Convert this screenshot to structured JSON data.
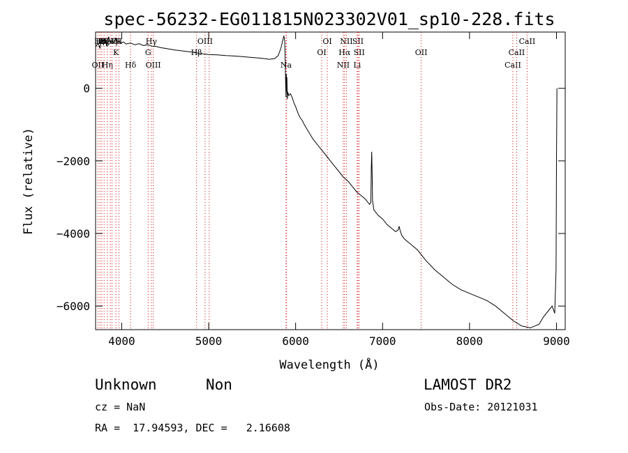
{
  "chart_data": {
    "type": "line",
    "title": "spec-56232-EG011815N023302V01_sp10-228.fits",
    "xlabel": "Wavelength (Å)",
    "ylabel": "Flux (relative)",
    "xlim": [
      3700,
      9100
    ],
    "ylim": [
      -6650,
      1550
    ],
    "x_ticks": [
      4000,
      5000,
      6000,
      7000,
      8000,
      9000
    ],
    "y_ticks": [
      0,
      -2000,
      -4000,
      -6000
    ],
    "grid": false,
    "series": [
      {
        "color": "#000000",
        "points": [
          [
            3705,
            1150
          ],
          [
            3730,
            1250
          ],
          [
            3750,
            1100
          ],
          [
            3770,
            1380
          ],
          [
            3790,
            1200
          ],
          [
            3810,
            1350
          ],
          [
            3830,
            1150
          ],
          [
            3850,
            1420
          ],
          [
            3870,
            1250
          ],
          [
            3890,
            1300
          ],
          [
            3910,
            1250
          ],
          [
            3930,
            1380
          ],
          [
            3950,
            1260
          ],
          [
            3970,
            1300
          ],
          [
            3990,
            1240
          ],
          [
            4020,
            1280
          ],
          [
            4050,
            1220
          ],
          [
            4100,
            1250
          ],
          [
            4150,
            1200
          ],
          [
            4200,
            1230
          ],
          [
            4250,
            1180
          ],
          [
            4300,
            1200
          ],
          [
            4350,
            1160
          ],
          [
            4400,
            1150
          ],
          [
            4450,
            1120
          ],
          [
            4500,
            1100
          ],
          [
            4600,
            1060
          ],
          [
            4700,
            1030
          ],
          [
            4800,
            1000
          ],
          [
            4900,
            960
          ],
          [
            5000,
            930
          ],
          [
            5100,
            920
          ],
          [
            5200,
            900
          ],
          [
            5300,
            890
          ],
          [
            5400,
            870
          ],
          [
            5500,
            850
          ],
          [
            5600,
            830
          ],
          [
            5700,
            800
          ],
          [
            5760,
            820
          ],
          [
            5800,
            900
          ],
          [
            5830,
            1100
          ],
          [
            5850,
            1300
          ],
          [
            5865,
            1450
          ],
          [
            5875,
            1300
          ],
          [
            5880,
            800
          ],
          [
            5885,
            200
          ],
          [
            5890,
            -250
          ],
          [
            5893,
            400
          ],
          [
            5897,
            -100
          ],
          [
            5900,
            300
          ],
          [
            5905,
            -300
          ],
          [
            5910,
            -100
          ],
          [
            5920,
            -200
          ],
          [
            5940,
            -150
          ],
          [
            5960,
            -250
          ],
          [
            5980,
            -400
          ],
          [
            6000,
            -500
          ],
          [
            6030,
            -700
          ],
          [
            6050,
            -800
          ],
          [
            6080,
            -900
          ],
          [
            6100,
            -1000
          ],
          [
            6150,
            -1200
          ],
          [
            6200,
            -1400
          ],
          [
            6250,
            -1550
          ],
          [
            6300,
            -1700
          ],
          [
            6350,
            -1850
          ],
          [
            6400,
            -2000
          ],
          [
            6450,
            -2150
          ],
          [
            6500,
            -2300
          ],
          [
            6550,
            -2450
          ],
          [
            6600,
            -2550
          ],
          [
            6650,
            -2700
          ],
          [
            6700,
            -2850
          ],
          [
            6750,
            -2950
          ],
          [
            6800,
            -3050
          ],
          [
            6850,
            -3200
          ],
          [
            6865,
            -3150
          ],
          [
            6870,
            -2200
          ],
          [
            6875,
            -1750
          ],
          [
            6880,
            -2300
          ],
          [
            6885,
            -3100
          ],
          [
            6900,
            -3350
          ],
          [
            6950,
            -3500
          ],
          [
            7000,
            -3600
          ],
          [
            7050,
            -3750
          ],
          [
            7100,
            -3850
          ],
          [
            7150,
            -3950
          ],
          [
            7180,
            -3900
          ],
          [
            7190,
            -3800
          ],
          [
            7200,
            -3900
          ],
          [
            7220,
            -4050
          ],
          [
            7250,
            -4150
          ],
          [
            7300,
            -4250
          ],
          [
            7400,
            -4450
          ],
          [
            7500,
            -4750
          ],
          [
            7600,
            -5000
          ],
          [
            7700,
            -5200
          ],
          [
            7800,
            -5400
          ],
          [
            7900,
            -5550
          ],
          [
            8000,
            -5650
          ],
          [
            8100,
            -5750
          ],
          [
            8200,
            -5850
          ],
          [
            8300,
            -6000
          ],
          [
            8400,
            -6200
          ],
          [
            8500,
            -6400
          ],
          [
            8600,
            -6550
          ],
          [
            8700,
            -6600
          ],
          [
            8800,
            -6500
          ],
          [
            8850,
            -6300
          ],
          [
            8900,
            -6150
          ],
          [
            8950,
            -6000
          ],
          [
            8980,
            -6200
          ],
          [
            8995,
            -5000
          ],
          [
            9000,
            -2000
          ],
          [
            9005,
            0
          ]
        ]
      }
    ],
    "lines": [
      {
        "x": 3727,
        "label": "OII",
        "row": 3
      },
      {
        "x": 3750,
        "label": "Hθ",
        "row": 0
      },
      {
        "x": 3771,
        "label": "Hη",
        "row": 0
      },
      {
        "x": 3798,
        "label": "Hζ",
        "row": 0
      },
      {
        "x": 3835,
        "label": "Hη",
        "row": 3
      },
      {
        "x": 3869,
        "label": "NeIII",
        "row": 0
      },
      {
        "x": 3889,
        "label": "Hζ",
        "row": 0
      },
      {
        "x": 3934,
        "label": "K",
        "row": 1
      },
      {
        "x": 3968,
        "label": "H",
        "row": 0
      },
      {
        "x": 4102,
        "label": "Hδ",
        "row": 3
      },
      {
        "x": 4304,
        "label": "G",
        "row": 2
      },
      {
        "x": 4341,
        "label": "Hγ",
        "row": 0
      },
      {
        "x": 4363,
        "label": "OIII",
        "row": 3
      },
      {
        "x": 4861,
        "label": "Hβ",
        "row": 1
      },
      {
        "x": 4959,
        "label": "OIII",
        "row": 0
      },
      {
        "x": 5007,
        "label": "",
        "row": 0
      },
      {
        "x": 5890,
        "label": "Na",
        "row": 3
      },
      {
        "x": 5896,
        "label": "",
        "row": 0
      },
      {
        "x": 6300,
        "label": "OI",
        "row": 1
      },
      {
        "x": 6364,
        "label": "OI",
        "row": 0
      },
      {
        "x": 6548,
        "label": "NII",
        "row": 3
      },
      {
        "x": 6563,
        "label": "Hα",
        "row": 1
      },
      {
        "x": 6584,
        "label": "NII",
        "row": 0
      },
      {
        "x": 6708,
        "label": "Li",
        "row": 3
      },
      {
        "x": 6717,
        "label": "SII",
        "row": 0
      },
      {
        "x": 6731,
        "label": "SII",
        "row": 1
      },
      {
        "x": 7444,
        "label": "OII",
        "row": 1
      },
      {
        "x": 8498,
        "label": "CaII",
        "row": 3
      },
      {
        "x": 8542,
        "label": "CaII",
        "row": 1
      },
      {
        "x": 8662,
        "label": "CaII",
        "row": 0
      }
    ]
  },
  "info": {
    "classification": "Unknown",
    "subclass": "Non",
    "survey": "LAMOST DR2",
    "cz": "cz = NaN",
    "obs_date": "Obs-Date: 20121031",
    "coords": "RA =  17.94593, DEC =   2.16608"
  }
}
